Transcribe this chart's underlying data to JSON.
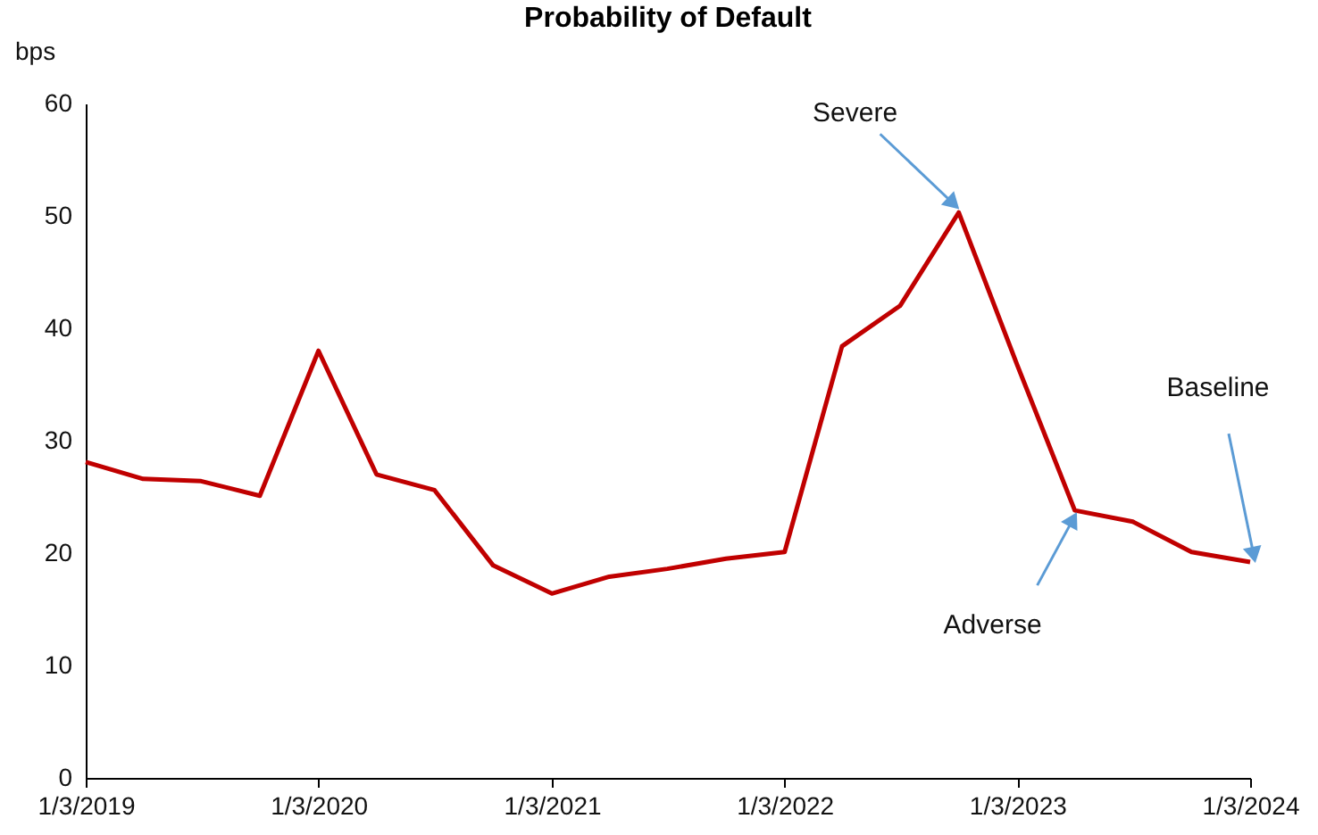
{
  "chart_data": {
    "type": "line",
    "title": "Probability of Default",
    "ylabel": "bps",
    "x": [
      "2019-01-03",
      "2019-04-03",
      "2019-07-03",
      "2019-10-03",
      "2020-01-03",
      "2020-04-03",
      "2020-07-03",
      "2020-10-03",
      "2021-01-03",
      "2021-04-03",
      "2021-07-03",
      "2021-10-03",
      "2022-01-03",
      "2022-04-03",
      "2022-07-03",
      "2022-10-03",
      "2023-01-03",
      "2023-04-03",
      "2023-07-03",
      "2023-10-03",
      "2024-01-03"
    ],
    "series": [
      {
        "color": "#c00000",
        "values": [
          28.1,
          26.6,
          26.4,
          25.1,
          38.0,
          27.0,
          25.6,
          18.9,
          16.4,
          17.9,
          18.6,
          19.5,
          20.1,
          38.4,
          42.0,
          50.3,
          36.7,
          23.8,
          22.8,
          20.1,
          19.2
        ]
      }
    ],
    "xlim": [
      "2019-01-03",
      "2024-01-03"
    ],
    "xticks": [
      {
        "value": "2019-01-03",
        "label": "1/3/2019"
      },
      {
        "value": "2020-01-03",
        "label": "1/3/2020"
      },
      {
        "value": "2021-01-03",
        "label": "1/3/2021"
      },
      {
        "value": "2022-01-03",
        "label": "1/3/2022"
      },
      {
        "value": "2023-01-03",
        "label": "1/3/2023"
      },
      {
        "value": "2024-01-03",
        "label": "1/3/2024"
      }
    ],
    "ylim": [
      0,
      60
    ],
    "yticks": [
      0,
      10,
      20,
      30,
      40,
      50,
      60
    ],
    "annotations": [
      {
        "text": "Severe",
        "x": "2022-10-03",
        "y": 50.3
      },
      {
        "text": "Adverse",
        "x": "2023-04-03",
        "y": 23.8
      },
      {
        "text": "Baseline",
        "x": "2024-01-03",
        "y": 19.2
      }
    ],
    "grid": false,
    "marker": "none",
    "line_style": "solid"
  }
}
